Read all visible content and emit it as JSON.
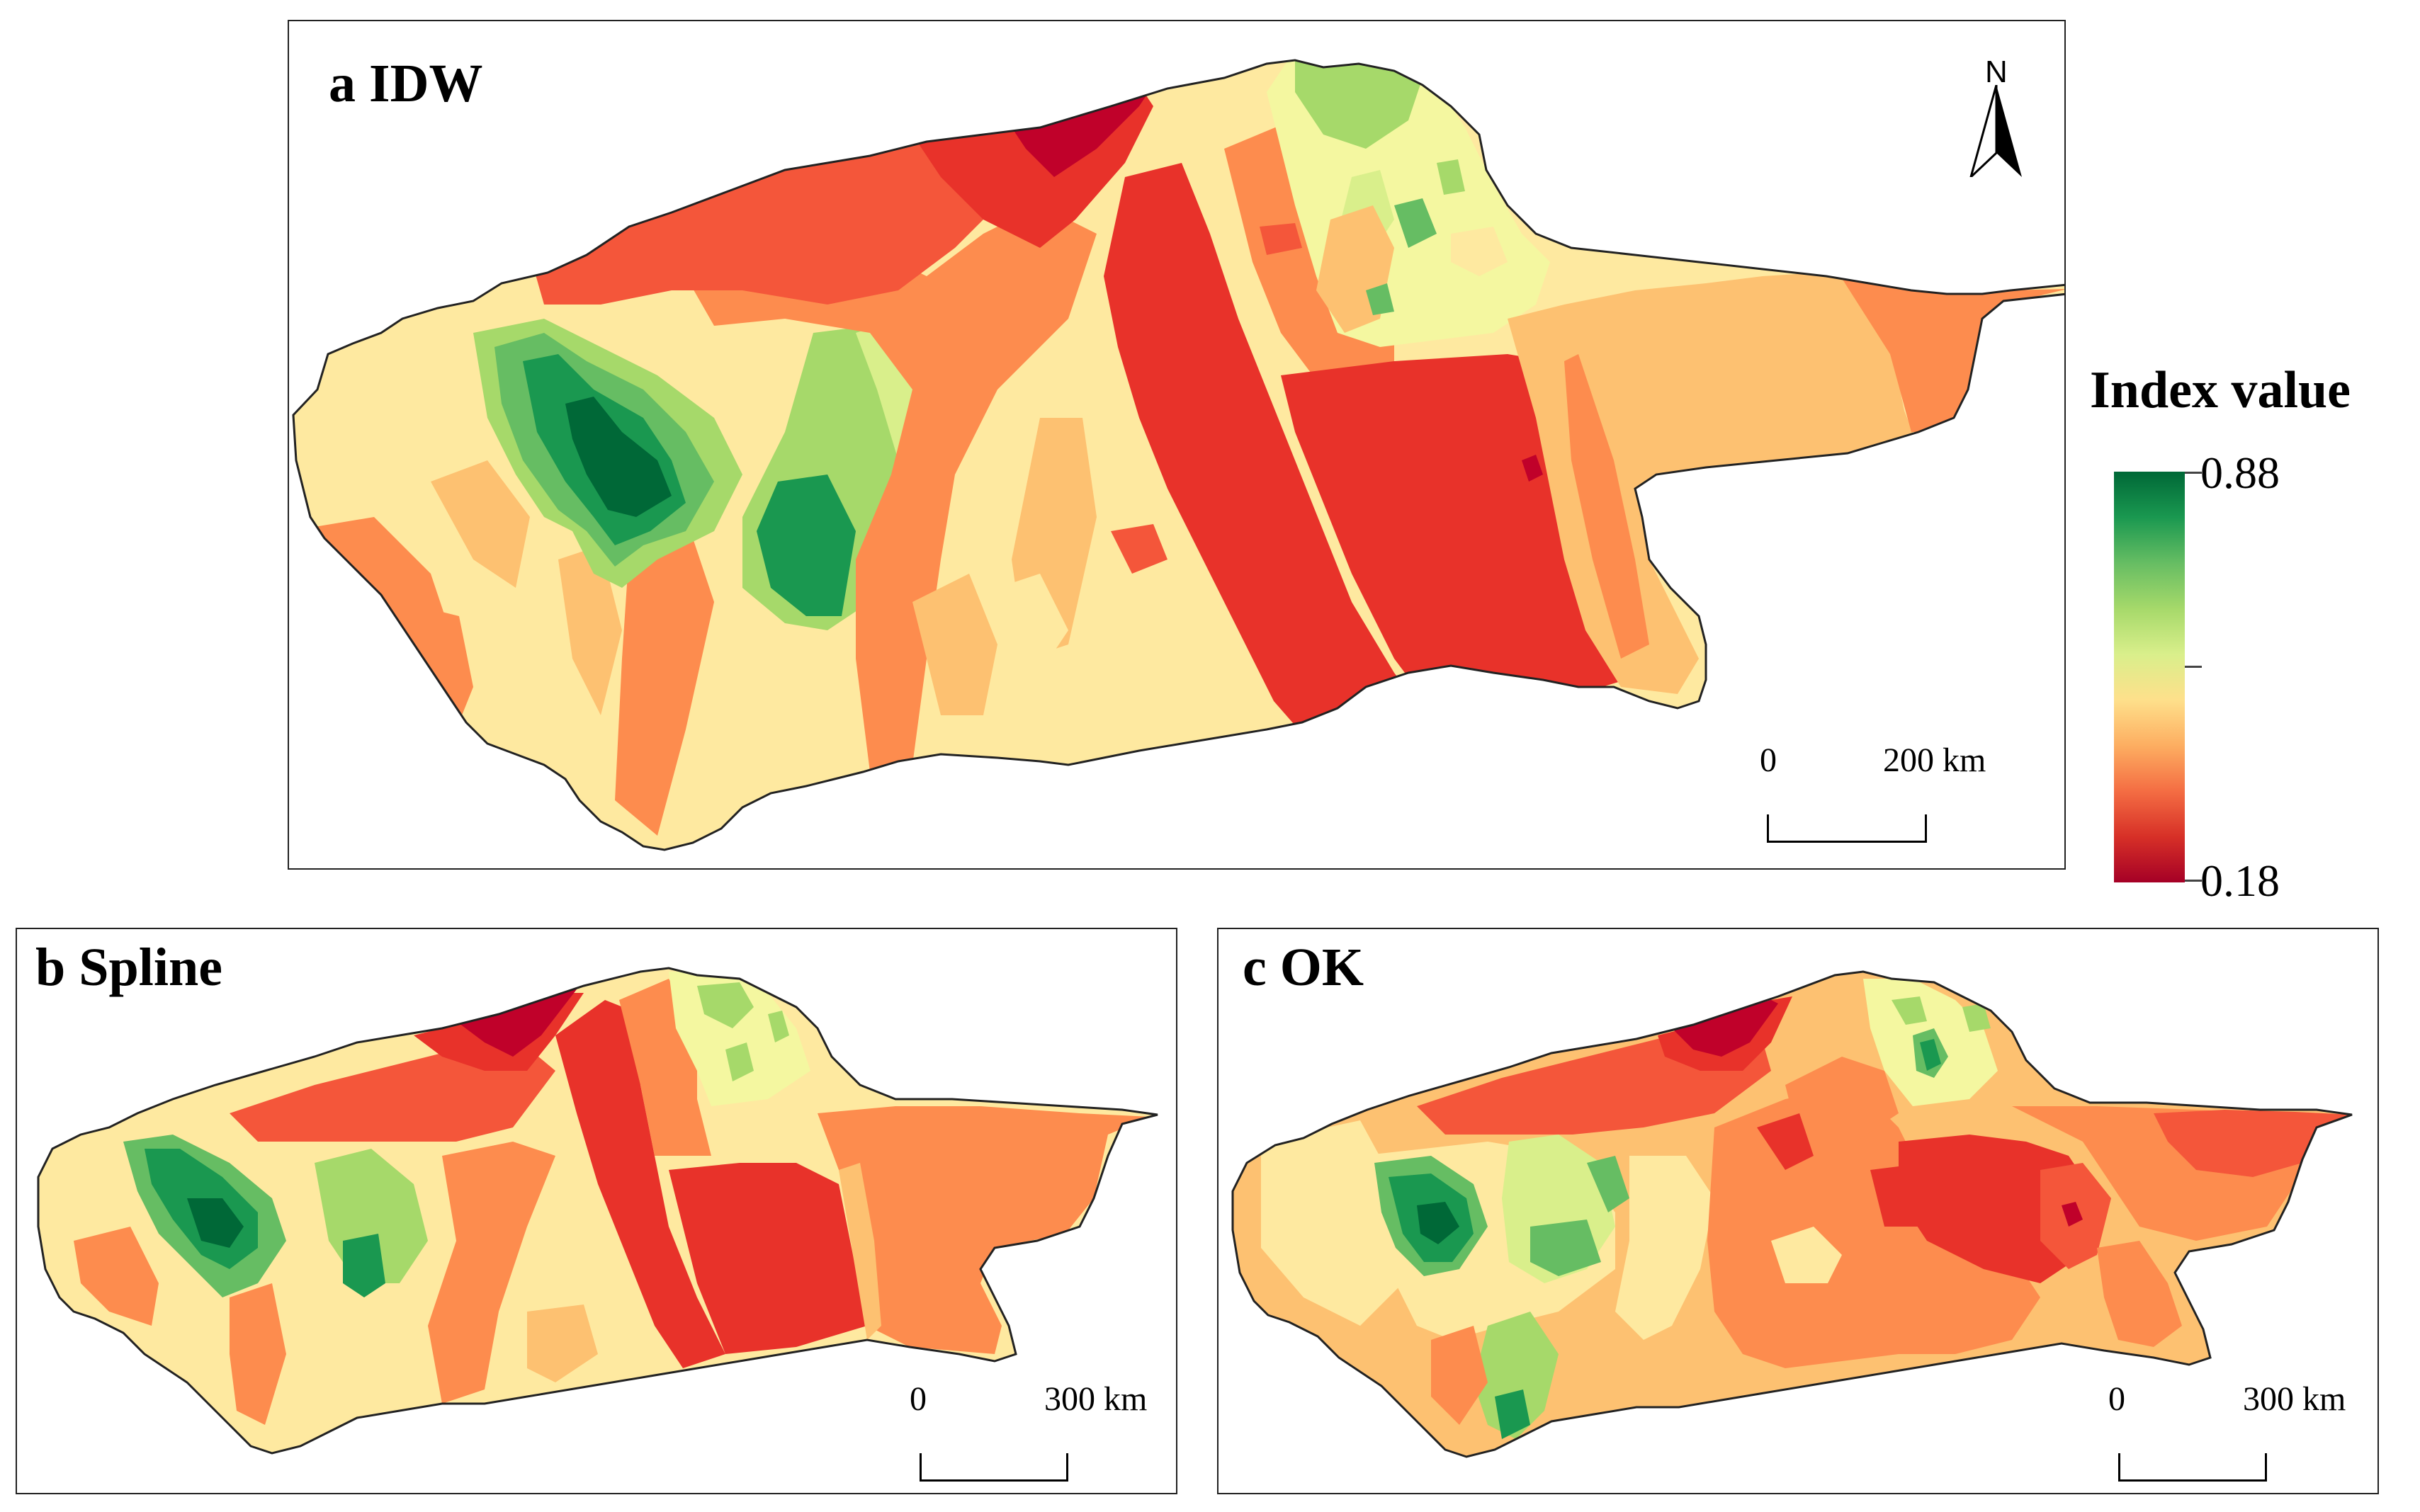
{
  "panels": {
    "a": {
      "title": "a IDW",
      "scale_left": "0",
      "scale_right": "200 km"
    },
    "b": {
      "title": "b Spline",
      "scale_left": "0",
      "scale_right": "300 km"
    },
    "c": {
      "title": "c OK",
      "scale_left": "0",
      "scale_right": "300 km"
    }
  },
  "north": {
    "label": "N"
  },
  "legend": {
    "title": "Index value",
    "max": "0.88",
    "min": "0.18",
    "colors": [
      "#006837",
      "#1a9850",
      "#66bd63",
      "#a6d96a",
      "#d9ef8b",
      "#fee08b",
      "#fdae61",
      "#f46d43",
      "#d73027",
      "#a50026"
    ]
  },
  "palette": {
    "dark_green": "#006837",
    "green": "#1a9850",
    "mid_green": "#66bd63",
    "light_green": "#a6d96a",
    "pale_yellow": "#f4f7a0",
    "cream": "#fee9a0",
    "light_orange": "#fdc171",
    "orange": "#fd8c4e",
    "red_orange": "#f4563a",
    "red": "#e8322a",
    "dark_red": "#c0012a"
  }
}
